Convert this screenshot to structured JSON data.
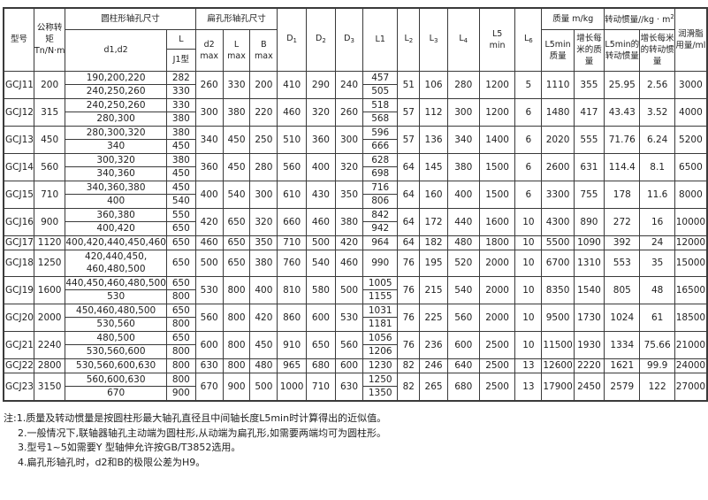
{
  "header": {
    "model": "型号",
    "torque": "公称转矩Tn/N·m",
    "cyl_group": "圆柱形轴孔尺寸",
    "d1d2": "d1,d2",
    "L": "L",
    "J1": "J1型",
    "flat_group": "扁孔形轴孔尺寸",
    "d2max": "d2 max",
    "Lmax": "L max",
    "Bmax": "B max",
    "D1": "D1",
    "D2": "D2",
    "D3": "D3",
    "L1": "L1",
    "L2": "L2",
    "L3": "L3",
    "L4": "L4",
    "L5": "L5 min",
    "L6": "L6",
    "mass_group": "质量 m/kg",
    "mass_l5": "L5min质量",
    "mass_per_m": "增长每米的质量",
    "inertia_group": "转动惯量//kg · m²",
    "inertia_l5": "L5min的转动惯量",
    "inertia_per_m": "增长每米的转动惯量",
    "grease": "润滑脂用量/ml"
  },
  "rows": [
    {
      "model": "GCJ11",
      "torque": "200",
      "bores": [
        {
          "d": "190,200,220",
          "L": "282",
          "L1": "457"
        },
        {
          "d": "240,250,260",
          "L": "330",
          "L1": "505"
        }
      ],
      "d2": "260",
      "Lf": "330",
      "B": "200",
      "D1": "410",
      "D2": "290",
      "D3": "240",
      "L2": "51",
      "L3": "106",
      "L4": "280",
      "L5": "1200",
      "L6": "5",
      "m1": "1110",
      "m2": "355",
      "i1": "25.95",
      "i2": "2.56",
      "g": "3000"
    },
    {
      "model": "GCJ12",
      "torque": "315",
      "bores": [
        {
          "d": "240,250,260",
          "L": "330",
          "L1": "518"
        },
        {
          "d": "280,300",
          "L": "380",
          "L1": "568"
        }
      ],
      "d2": "300",
      "Lf": "380",
      "B": "220",
      "D1": "460",
      "D2": "320",
      "D3": "260",
      "L2": "57",
      "L3": "112",
      "L4": "300",
      "L5": "1200",
      "L6": "6",
      "m1": "1480",
      "m2": "417",
      "i1": "43.43",
      "i2": "3.52",
      "g": "4000"
    },
    {
      "model": "GCJ13",
      "torque": "450",
      "bores": [
        {
          "d": "280,300,320",
          "L": "380",
          "L1": "596"
        },
        {
          "d": "340",
          "L": "450",
          "L1": "666"
        }
      ],
      "d2": "340",
      "Lf": "450",
      "B": "250",
      "D1": "510",
      "D2": "360",
      "D3": "300",
      "L2": "57",
      "L3": "136",
      "L4": "340",
      "L5": "1400",
      "L6": "6",
      "m1": "2020",
      "m2": "555",
      "i1": "71.76",
      "i2": "6.24",
      "g": "5200"
    },
    {
      "model": "GCJ14",
      "torque": "560",
      "bores": [
        {
          "d": "300,320",
          "L": "380",
          "L1": "628"
        },
        {
          "d": "340,360",
          "L": "450",
          "L1": "698"
        }
      ],
      "d2": "360",
      "Lf": "450",
      "B": "280",
      "D1": "560",
      "D2": "400",
      "D3": "320",
      "L2": "64",
      "L3": "145",
      "L4": "380",
      "L5": "1500",
      "L6": "6",
      "m1": "2600",
      "m2": "631",
      "i1": "114.4",
      "i2": "8.1",
      "g": "6500"
    },
    {
      "model": "GCJ15",
      "torque": "710",
      "bores": [
        {
          "d": "340,360,380",
          "L": "450",
          "L1": "716"
        },
        {
          "d": "400",
          "L": "540",
          "L1": "806"
        }
      ],
      "d2": "400",
      "Lf": "540",
      "B": "300",
      "D1": "610",
      "D2": "430",
      "D3": "350",
      "L2": "64",
      "L3": "160",
      "L4": "400",
      "L5": "1500",
      "L6": "6",
      "m1": "3300",
      "m2": "755",
      "i1": "178",
      "i2": "11.6",
      "g": "8000"
    },
    {
      "model": "GCJ16",
      "torque": "900",
      "bores": [
        {
          "d": "360,380",
          "L": "550",
          "L1": "842"
        },
        {
          "d": "400,420",
          "L": "650",
          "L1": "942"
        }
      ],
      "d2": "420",
      "Lf": "650",
      "B": "320",
      "D1": "660",
      "D2": "460",
      "D3": "380",
      "L2": "64",
      "L3": "172",
      "L4": "440",
      "L5": "1600",
      "L6": "10",
      "m1": "4300",
      "m2": "890",
      "i1": "272",
      "i2": "16",
      "g": "10000"
    },
    {
      "model": "GCJ17",
      "torque": "1120",
      "bores": [
        {
          "d": "400,420,440,450,460",
          "L": "650",
          "L1": "964"
        }
      ],
      "d2": "460",
      "Lf": "650",
      "B": "350",
      "D1": "710",
      "D2": "500",
      "D3": "420",
      "L2": "64",
      "L3": "182",
      "L4": "480",
      "L5": "1800",
      "L6": "10",
      "m1": "5500",
      "m2": "1090",
      "i1": "392",
      "i2": "24",
      "g": "12000"
    },
    {
      "model": "GCJ18",
      "torque": "1250",
      "tall": true,
      "bores": [
        {
          "d": "420,440,450, 460,480,500",
          "L": "650",
          "L1": "990"
        }
      ],
      "d2": "500",
      "Lf": "650",
      "B": "380",
      "D1": "760",
      "D2": "540",
      "D3": "460",
      "L2": "76",
      "L3": "195",
      "L4": "520",
      "L5": "2000",
      "L6": "10",
      "m1": "6700",
      "m2": "1310",
      "i1": "553",
      "i2": "35",
      "g": "15000"
    },
    {
      "model": "GCJ19",
      "torque": "1600",
      "bores": [
        {
          "d": "440,450,460,480,500",
          "L": "650",
          "L1": "1005"
        },
        {
          "d": "530",
          "L": "800",
          "L1": "1155"
        }
      ],
      "d2": "530",
      "Lf": "800",
      "B": "400",
      "D1": "810",
      "D2": "580",
      "D3": "500",
      "L2": "76",
      "L3": "215",
      "L4": "540",
      "L5": "2000",
      "L6": "10",
      "m1": "8350",
      "m2": "1540",
      "i1": "805",
      "i2": "48",
      "g": "16500"
    },
    {
      "model": "GCJ20",
      "torque": "2000",
      "bores": [
        {
          "d": "450,460,480,500",
          "L": "650",
          "L1": "1031"
        },
        {
          "d": "530,560",
          "L": "800",
          "L1": "1181"
        }
      ],
      "d2": "560",
      "Lf": "800",
      "B": "420",
      "D1": "860",
      "D2": "600",
      "D3": "530",
      "L2": "76",
      "L3": "225",
      "L4": "560",
      "L5": "2000",
      "L6": "10",
      "m1": "9500",
      "m2": "1730",
      "i1": "1024",
      "i2": "61",
      "g": "18500"
    },
    {
      "model": "GCJ21",
      "torque": "2240",
      "bores": [
        {
          "d": "480,500",
          "L": "650",
          "L1": "1056"
        },
        {
          "d": "530,560,600",
          "L": "800",
          "L1": "1206"
        }
      ],
      "d2": "600",
      "Lf": "800",
      "B": "450",
      "D1": "910",
      "D2": "650",
      "D3": "560",
      "L2": "76",
      "L3": "236",
      "L4": "600",
      "L5": "2500",
      "L6": "10",
      "m1": "11500",
      "m2": "1930",
      "i1": "1334",
      "i2": "75.66",
      "g": "21000"
    },
    {
      "model": "GCJ22",
      "torque": "2800",
      "bores": [
        {
          "d": "530,560,600,630",
          "L": "800",
          "L1": "1230"
        }
      ],
      "d2": "630",
      "Lf": "800",
      "B": "480",
      "D1": "965",
      "D2": "680",
      "D3": "600",
      "L2": "82",
      "L3": "246",
      "L4": "640",
      "L5": "2500",
      "L6": "13",
      "m1": "12600",
      "m2": "2220",
      "i1": "1621",
      "i2": "99.9",
      "g": "24000"
    },
    {
      "model": "GCJ23",
      "torque": "3150",
      "bores": [
        {
          "d": "560,600,630",
          "L": "800",
          "L1": "1250"
        },
        {
          "d": "670",
          "L": "900",
          "L1": "1350"
        }
      ],
      "d2": "670",
      "Lf": "900",
      "B": "500",
      "D1": "1000",
      "D2": "710",
      "D3": "630",
      "L2": "82",
      "L3": "265",
      "L4": "680",
      "L5": "2500",
      "L6": "13",
      "m1": "17900",
      "m2": "2450",
      "i1": "2579",
      "i2": "122",
      "g": "27000"
    }
  ],
  "notes": [
    "注:1.质量及转动惯量是按圆柱形最大轴孔直径且中间轴长度L5min时计算得出的近似值。",
    "2.一般情况下,联轴器轴孔主动端为圆柱形,从动端为扁孔形,如需要两端均可为圆柱形。",
    "3.型号1~5如需要Y 型轴伸允许按GB/T3852选用。",
    "4.扁孔形轴孔时，d2和B的极限公差为H9。"
  ]
}
